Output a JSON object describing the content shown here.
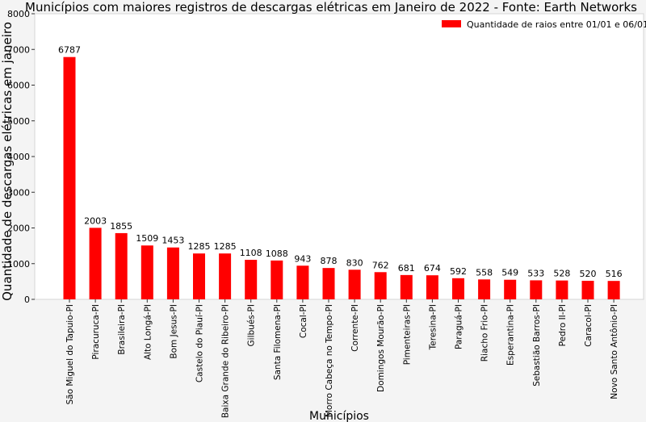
{
  "chart_data": {
    "type": "bar",
    "title": "Municípios com maiores registros de descargas elétricas em Janeiro de 2022  - Fonte: Earth Networks",
    "xlabel": "Municípios",
    "ylabel": "Quantidade de descargas elétricas em janeiro",
    "ylim": [
      0,
      8000
    ],
    "yticks": [
      0,
      1000,
      2000,
      3000,
      4000,
      5000,
      6000,
      7000,
      8000
    ],
    "grid": false,
    "legend_position": "top-right",
    "categories": [
      "São Miguel do Tapuio-PI",
      "Piracuruca-PI",
      "Brasileira-PI",
      "Alto Longá-PI",
      "Bom Jesus-PI",
      "Castelo do Piauí-PI",
      "Baixa Grande do Ribeiro-PI",
      "Gilbués-PI",
      "Santa Filomena-PI",
      "Cocal-PI",
      "Morro Cabeça no Tempo-PI",
      "Corrente-PI",
      "Domingos Mourão-PI",
      "Pimenteiras-PI",
      "Teresina-PI",
      "Paraguá-PI",
      "Riacho Frio-PI",
      "Esperantina-PI",
      "Sebastião Barros-PI",
      "Pedro II-PI",
      "Caracol-PI",
      "Novo Santo Antônio-PI"
    ],
    "series": [
      {
        "name": "Quantidade de raios entre 01/01 e 06/01",
        "color": "#ff0000",
        "values": [
          6787,
          2003,
          1855,
          1509,
          1453,
          1285,
          1285,
          1108,
          1088,
          943,
          878,
          830,
          762,
          681,
          674,
          592,
          558,
          549,
          533,
          528,
          520,
          516
        ]
      }
    ]
  }
}
